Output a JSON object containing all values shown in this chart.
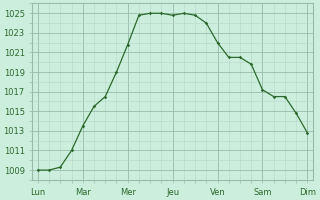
{
  "x_labels": [
    "Lun",
    "Mar",
    "Mer",
    "Jeu",
    "Ven",
    "Sam",
    "Dim"
  ],
  "x_tick_positions": [
    0,
    4,
    8,
    12,
    16,
    20,
    24
  ],
  "line_color": "#2d6a2d",
  "marker_color": "#2d6a2d",
  "bg_color": "#cceedd",
  "ylim": [
    1008.5,
    1026.0
  ],
  "yticks": [
    1009,
    1011,
    1013,
    1015,
    1017,
    1019,
    1021,
    1023,
    1025
  ],
  "tick_fontsize": 6.0,
  "x_vals": [
    0,
    1,
    2,
    3,
    4,
    5,
    6,
    7,
    8,
    9,
    10,
    11,
    12,
    13,
    14,
    15,
    16,
    17,
    18,
    19,
    20,
    21,
    22,
    23,
    24
  ],
  "y_vals": [
    1009.0,
    1009.0,
    1009.3,
    1011.0,
    1013.5,
    1015.5,
    1016.5,
    1019.0,
    1021.8,
    1024.8,
    1025.0,
    1025.0,
    1024.8,
    1025.0,
    1024.8,
    1024.0,
    1022.0,
    1020.5,
    1020.5,
    1019.8,
    1017.2,
    1016.5,
    1016.5,
    1014.8,
    1012.8
  ]
}
